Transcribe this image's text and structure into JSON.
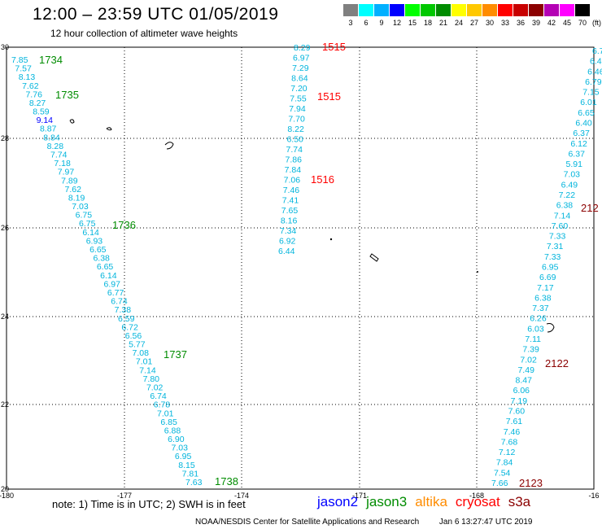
{
  "header": {
    "title": "12:00 – 23:59 UTC 01/05/2019",
    "subtitle": "12 hour collection of altimeter wave heights"
  },
  "color_scale": {
    "labels": [
      "3",
      "6",
      "9",
      "12",
      "15",
      "18",
      "21",
      "24",
      "27",
      "30",
      "33",
      "36",
      "39",
      "42",
      "45",
      "70"
    ],
    "unit": "(ft)",
    "colors": [
      "#808080",
      "#00ffff",
      "#00b0ff",
      "#0000ff",
      "#00ff00",
      "#00c800",
      "#008c00",
      "#ffff00",
      "#ffc800",
      "#ff8c00",
      "#ff0000",
      "#c80000",
      "#8b0000",
      "#b400b4",
      "#ff00ff",
      "#000000"
    ]
  },
  "axes": {
    "lat_labels": [
      "30",
      "28",
      "26",
      "24",
      "22",
      "20"
    ],
    "lon_labels": [
      "-180",
      "-177",
      "-174",
      "-171",
      "-168",
      "-16"
    ]
  },
  "tracks": [
    {
      "color": "#00b4dc",
      "values": [
        "7.85",
        "7.57",
        "8.13",
        "7.62",
        "7.76",
        "8.27",
        "8.59",
        "9.14",
        "8.87",
        "8.84",
        "8.28",
        "7.74",
        "7.18",
        "7.97",
        "7.89",
        "7.62",
        "8.19",
        "7.03",
        "6.75",
        "6.75",
        "6.14",
        "6.93",
        "6.65",
        "6.38",
        "6.65",
        "6.14",
        "6.97",
        "6.77",
        "6.74",
        "7.38",
        "6.59",
        "6.72",
        "6.56",
        "5.77",
        "7.08",
        "7.01",
        "7.14",
        "7.80",
        "7.02",
        "6.74",
        "6.78",
        "7.01",
        "6.85",
        "6.88",
        "6.90",
        "7.03",
        "6.95",
        "8.15",
        "7.81",
        "7.63"
      ]
    },
    {
      "color": "#00b4dc",
      "values": [
        "8.29",
        "6.97",
        "7.29",
        "8.64",
        "7.20",
        "7.55",
        "7.94",
        "7.70",
        "8.22",
        "6.50",
        "7.74",
        "7.86",
        "7.84",
        "7.06",
        "7.46",
        "7.41",
        "7.65",
        "8.16",
        "7.34",
        "6.92",
        "6.44"
      ]
    },
    {
      "color": "#00b4dc",
      "values": [
        "6.7",
        "6.4",
        "6.46",
        "6.79",
        "7.15",
        "6.01",
        "6.65",
        "6.40",
        "6.37",
        "6.12",
        "6.37",
        "5.91",
        "7.03",
        "6.49",
        "7.22",
        "6.38",
        "7.14",
        "7.60",
        "7.33",
        "7.31",
        "7.33",
        "6.95",
        "6.69",
        "7.17",
        "6.38",
        "7.37",
        "6.26",
        "6.03",
        "7.11",
        "7.39",
        "7.02",
        "7.49",
        "8.47",
        "6.06",
        "7.19",
        "7.60",
        "7.61",
        "7.46",
        "7.68",
        "7.12",
        "7.84",
        "7.54",
        "7.66"
      ]
    }
  ],
  "time_labels": [
    {
      "text": "1734",
      "color": "#008c00"
    },
    {
      "text": "1735",
      "color": "#008c00"
    },
    {
      "text": "1736",
      "color": "#008c00"
    },
    {
      "text": "1737",
      "color": "#008c00"
    },
    {
      "text": "1738",
      "color": "#008c00"
    },
    {
      "text": "1515",
      "color": "#ff0000"
    },
    {
      "text": "1515",
      "color": "#ff0000"
    },
    {
      "text": "1516",
      "color": "#ff0000"
    },
    {
      "text": "212",
      "color": "#8b0000"
    },
    {
      "text": "2122",
      "color": "#8b0000"
    },
    {
      "text": "2123",
      "color": "#8b0000"
    }
  ],
  "footer": {
    "note": "note:  1) Time is in UTC;  2) SWH is in feet",
    "satellites": [
      {
        "name": "jason2",
        "color": "#0000ff"
      },
      {
        "name": "jason3",
        "color": "#008c00"
      },
      {
        "name": "altika",
        "color": "#ff8c00"
      },
      {
        "name": "cryosat",
        "color": "#ff0000"
      },
      {
        "name": "s3a",
        "color": "#8b0000"
      }
    ],
    "credit_org": "NOAA/NESDIS Center for Satellite Applications and Research",
    "credit_time": "Jan  6 13:27:47 UTC 2019"
  }
}
